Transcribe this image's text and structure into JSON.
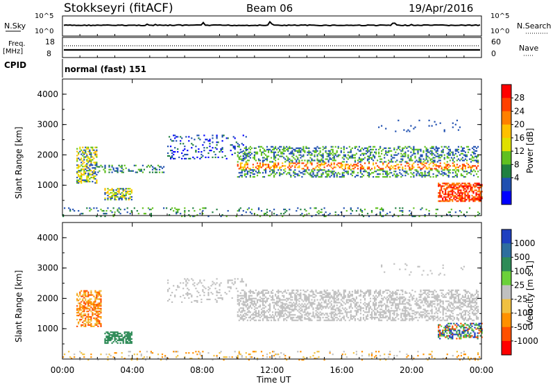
{
  "header": {
    "station": "Stokkseyri (fitACF)",
    "beam": "Beam 06",
    "date": "19/Apr/2016"
  },
  "top_panel": {
    "left_label": "N.Sky",
    "left_ticks": [
      "10^5",
      "10^0"
    ],
    "right_ticks": [
      "10^5",
      "10^0"
    ],
    "right_label": "N.Search"
  },
  "freq_panel": {
    "left_label": "Freq.",
    "left_unit": "[MHz]",
    "left_ticks": [
      "18",
      "8"
    ],
    "right_ticks": [
      "60",
      "0"
    ],
    "right_label": "Nave"
  },
  "cpid": {
    "label": "CPID",
    "value": "normal (fast) 151"
  },
  "time_axis": {
    "ticks": [
      "00:00",
      "04:00",
      "08:00",
      "12:00",
      "16:00",
      "20:00",
      "00:00"
    ],
    "label": "Time UT"
  },
  "power_colorbar": {
    "label": "Power [dB]",
    "ticks": [
      "28",
      "24",
      "20",
      "16",
      "12",
      "8",
      "4"
    ],
    "colors": [
      "#ff0000",
      "#ff4000",
      "#ff8000",
      "#ffc000",
      "#e0e000",
      "#60c020",
      "#208040",
      "#2050b0",
      "#0000ff"
    ]
  },
  "velocity_colorbar": {
    "label": "Velocity [m s-1]",
    "ticks": [
      "1000",
      "500",
      "100",
      "25",
      "-25",
      "-100",
      "-500",
      "-1000"
    ],
    "colors": [
      "#1e40c0",
      "#2e6e9e",
      "#2e8b57",
      "#6bd13a",
      "#c0c0c0",
      "#f0c040",
      "#ff9000",
      "#ff5000",
      "#ff0000"
    ]
  },
  "chart_data": [
    {
      "type": "line",
      "title": "Stokkseyri (fitACF) Beam 06 19/Apr/2016",
      "series": [
        {
          "name": "N.Sky"
        },
        {
          "name": "N.Search"
        }
      ],
      "xlabel": "Time UT",
      "categories": [
        "00:00",
        "04:00",
        "08:00",
        "12:00",
        "16:00",
        "20:00",
        "00:00"
      ]
    },
    {
      "type": "line",
      "ylabel": "Freq. [MHz]",
      "ylim": [
        8,
        18
      ],
      "series": [
        {
          "name": "Freq."
        },
        {
          "name": "Nave"
        }
      ]
    },
    {
      "type": "heatmap",
      "ylabel": "Slant Range [km]",
      "ylim": [
        0,
        4500
      ],
      "y_ticks": [
        1000,
        2000,
        3000,
        4000
      ],
      "colorbar_label": "Power [dB]",
      "colorbar_ticks": [
        28,
        24,
        20,
        16,
        12,
        8,
        4
      ]
    },
    {
      "type": "heatmap",
      "ylabel": "Slant Range [km]",
      "ylim": [
        0,
        4500
      ],
      "y_ticks": [
        1000,
        2000,
        3000,
        4000
      ],
      "colorbar_label": "Velocity [m s-1]",
      "colorbar_ticks": [
        1000,
        500,
        100,
        25,
        -25,
        -100,
        -500,
        -1000
      ]
    }
  ]
}
